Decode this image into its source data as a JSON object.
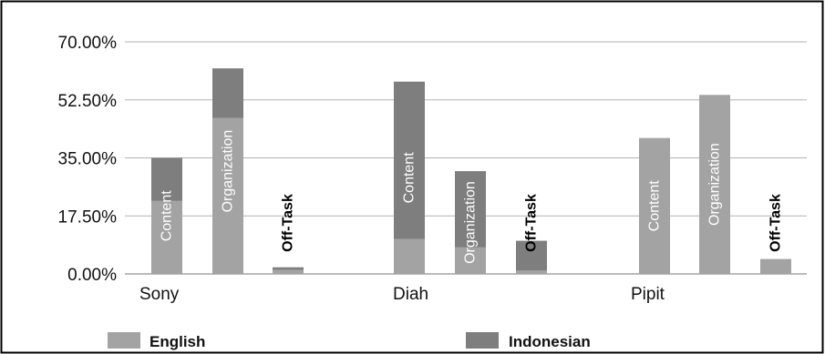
{
  "colors": {
    "english": "#a3a3a3",
    "indonesian": "#7e7e7e",
    "grid": "#b3b3b3",
    "frame": "#000000",
    "axis": "#777777",
    "bar_text_light": "#ffffff",
    "bar_text_dark": "#000000"
  },
  "chart_data": {
    "type": "bar",
    "stacked": true,
    "title": "",
    "xlabel": "",
    "ylabel": "",
    "ylim": [
      0,
      70
    ],
    "ytick_labels": [
      "0.00%",
      "17.50%",
      "35.00%",
      "52.50%",
      "70.00%"
    ],
    "yticks": [
      0,
      17.5,
      35,
      52.5,
      70
    ],
    "grid": true,
    "legend_position": "bottom",
    "groups": [
      "Sony",
      "Diah",
      "Pipit"
    ],
    "series": [
      {
        "name": "English",
        "color_key": "english"
      },
      {
        "name": "Indonesian",
        "color_key": "indonesian"
      }
    ],
    "bars": [
      {
        "group": "Sony",
        "label": "Content",
        "english": 22,
        "indonesian": 13,
        "text_style": "light"
      },
      {
        "group": "Sony",
        "label": "Organization",
        "english": 47,
        "indonesian": 15,
        "text_style": "light"
      },
      {
        "group": "Sony",
        "label": "Off-Task",
        "english": 1.2,
        "indonesian": 0.8,
        "text_style": "dark"
      },
      {
        "group": "Diah",
        "label": "Content",
        "english": 10.5,
        "indonesian": 47.5,
        "text_style": "light"
      },
      {
        "group": "Diah",
        "label": "Organization",
        "english": 8,
        "indonesian": 23,
        "text_style": "light"
      },
      {
        "group": "Diah",
        "label": "Off-Task",
        "english": 1,
        "indonesian": 9,
        "text_style": "dark"
      },
      {
        "group": "Pipit",
        "label": "Content",
        "english": 41,
        "indonesian": 0,
        "text_style": "light"
      },
      {
        "group": "Pipit",
        "label": "Organization",
        "english": 54,
        "indonesian": 0,
        "text_style": "light"
      },
      {
        "group": "Pipit",
        "label": "Off-Task",
        "english": 4.5,
        "indonesian": 0,
        "text_style": "dark"
      }
    ]
  },
  "legend": {
    "english_label": "English",
    "indonesian_label": "Indonesian"
  }
}
